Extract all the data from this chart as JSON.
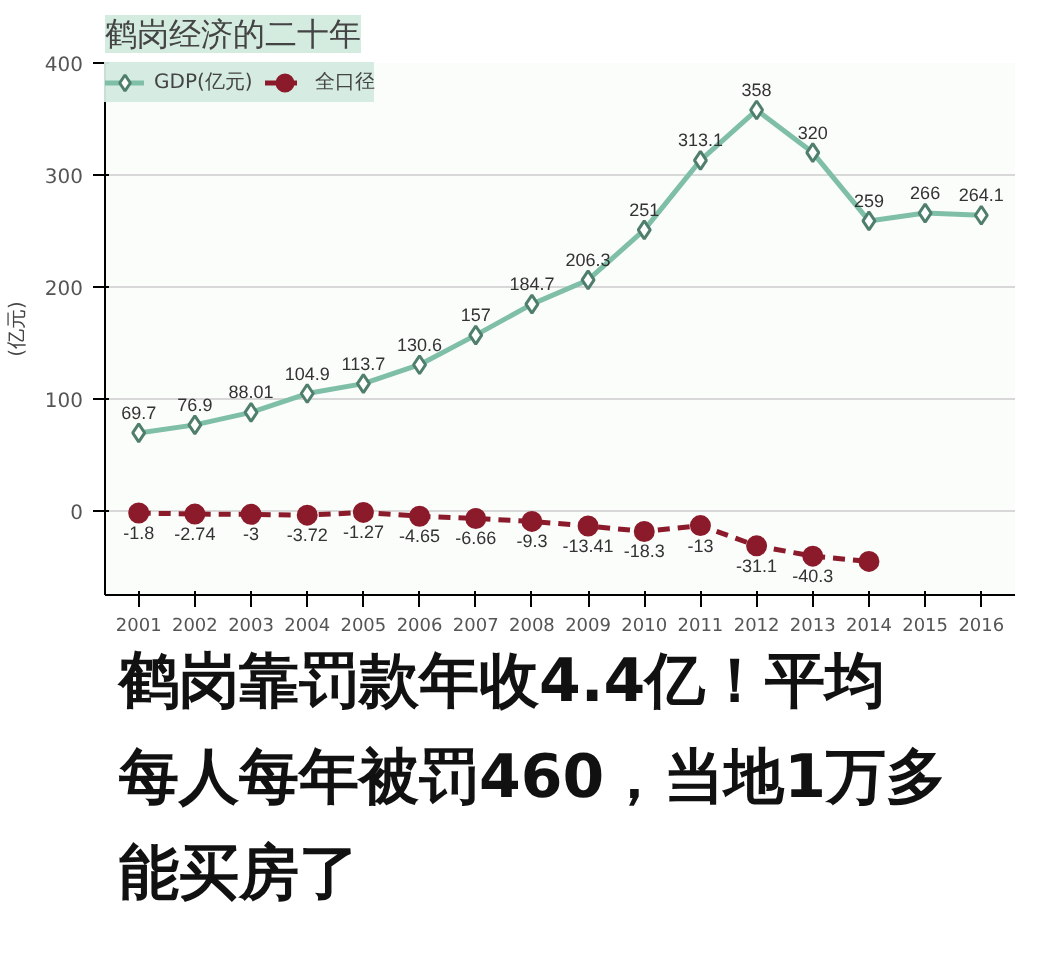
{
  "chart_data": {
    "type": "line",
    "title": "鹤岗经济的二十年",
    "ylabel": "(亿元)",
    "categories": [
      "2001",
      "2002",
      "2003",
      "2004",
      "2005",
      "2006",
      "2007",
      "2008",
      "2009",
      "2010",
      "2011",
      "2012",
      "2013",
      "2014",
      "2015",
      "2016"
    ],
    "series": [
      {
        "name": "GDP(亿元)",
        "color": "#7fbfa8",
        "marker": "diamond",
        "line_style": "solid",
        "values": [
          69.7,
          76.9,
          88.01,
          104.9,
          113.7,
          130.6,
          157,
          184.7,
          206.3,
          251,
          313.1,
          358,
          320,
          259,
          266,
          264.1
        ],
        "value_labels": [
          "69.7",
          "76.9",
          "88.01",
          "104.9",
          "113.7",
          "130.6",
          "157",
          "184.7",
          "206.3",
          "251",
          "313.1",
          "358",
          "320",
          "259",
          "266",
          "264.1"
        ]
      },
      {
        "name": "全口径",
        "color": "#8b1a2a",
        "marker": "circle",
        "line_style": "dashed",
        "values": [
          -1.8,
          -2.74,
          -3,
          -3.72,
          -1.27,
          -4.65,
          -6.66,
          -9.3,
          -13.41,
          -18.3,
          -13,
          -31.1,
          -40.3,
          -45,
          null,
          null
        ],
        "value_labels": [
          "-1.8",
          "-2.74",
          "-3",
          "-3.72",
          "-1.27",
          "-4.65",
          "-6.66",
          "-9.3",
          "-13.41",
          "-18.3",
          "-13",
          "-31.1",
          "-40.3",
          null,
          null,
          null
        ]
      }
    ],
    "ylim": [
      -75,
      400
    ],
    "yticks": [
      0,
      100,
      200,
      300,
      400
    ],
    "grid": "y",
    "legend": "top left",
    "annotations": [
      "鹤岗靠罚款年收4.4亿！平均每人每年被罚460，当地1万多能买房了"
    ]
  }
}
